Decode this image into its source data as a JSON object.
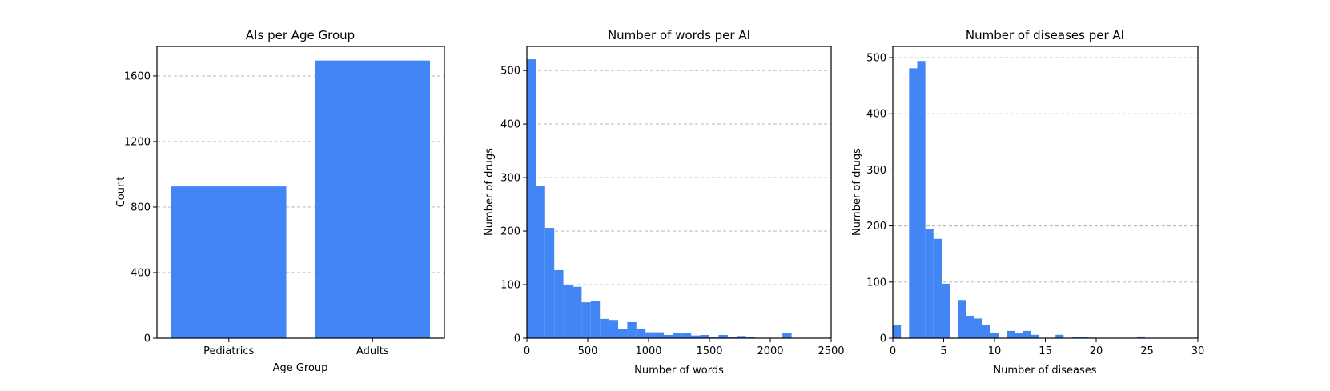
{
  "colors": {
    "bar": "#4285f4",
    "grid": "#b0b0b0",
    "axis": "#000000"
  },
  "chart_data": [
    {
      "type": "bar",
      "title": "AIs per Age Group",
      "xlabel": "Age Group",
      "ylabel": "Count",
      "categories": [
        "Pediatrics",
        "Adults"
      ],
      "values": [
        926,
        1694
      ],
      "ylim": [
        0,
        1780
      ],
      "yticks": [
        0,
        400,
        800,
        1200,
        1600
      ],
      "grid": "y, dashed"
    },
    {
      "type": "bar",
      "subtype": "histogram",
      "title": "Number of words per AI",
      "xlabel": "Number of words",
      "ylabel": "Number of drugs",
      "bin_width": 75,
      "bin_start": 0,
      "values": [
        521,
        285,
        206,
        127,
        99,
        96,
        67,
        70,
        36,
        34,
        17,
        30,
        18,
        11,
        11,
        6,
        10,
        10,
        5,
        6,
        2,
        6,
        3,
        4,
        3,
        0,
        0,
        0,
        9,
        0,
        0,
        0
      ],
      "xlim": [
        0,
        2500
      ],
      "ylim": [
        0,
        545
      ],
      "xticks": [
        0,
        500,
        1000,
        1500,
        2000,
        2500
      ],
      "yticks": [
        0,
        100,
        200,
        300,
        400,
        500
      ],
      "grid": "y, dashed"
    },
    {
      "type": "bar",
      "subtype": "histogram",
      "title": "Number of diseases per AI",
      "xlabel": "Number of diseases",
      "ylabel": "Number of drugs",
      "bin_width": 0.8,
      "bin_start": 0,
      "values": [
        24,
        0,
        481,
        494,
        195,
        177,
        97,
        0,
        68,
        40,
        35,
        23,
        10,
        0,
        13,
        9,
        13,
        6,
        0,
        0,
        6,
        0,
        2,
        2,
        1,
        0,
        0,
        0,
        0,
        0,
        3,
        0,
        0,
        0,
        0,
        0,
        0
      ],
      "xlim": [
        0,
        30
      ],
      "ylim": [
        0,
        520
      ],
      "xticks": [
        0,
        5,
        10,
        15,
        20,
        25,
        30
      ],
      "yticks": [
        0,
        100,
        200,
        300,
        400,
        500
      ],
      "grid": "y, dashed"
    }
  ]
}
